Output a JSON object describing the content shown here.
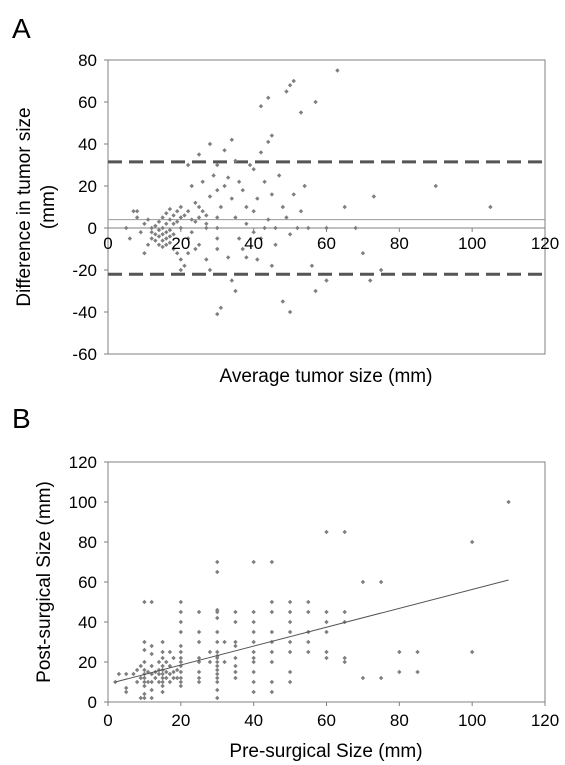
{
  "chart_data": [
    {
      "panel": "A",
      "type": "scatter",
      "title": "",
      "xlabel": "Average tumor size (mm)",
      "ylabel": "Difference in tumor size\n(mm)",
      "xlim": [
        0,
        120
      ],
      "ylim": [
        -60,
        80
      ],
      "xticks": [
        0,
        20,
        40,
        60,
        80,
        100,
        120
      ],
      "yticks": [
        -60,
        -40,
        -20,
        0,
        20,
        40,
        60,
        80
      ],
      "grid": false,
      "legend": "none",
      "point_color": "#7f7f7f",
      "reference_lines": [
        {
          "style": "dashed",
          "y": 31.5,
          "color": "#555555"
        },
        {
          "style": "solid",
          "y": 4,
          "color": "#999999"
        },
        {
          "style": "dashed",
          "y": -22,
          "color": "#555555"
        }
      ],
      "points": [
        [
          5,
          0
        ],
        [
          6,
          -5
        ],
        [
          7,
          8
        ],
        [
          8,
          8
        ],
        [
          8,
          5
        ],
        [
          9,
          -2
        ],
        [
          10,
          -12
        ],
        [
          10,
          2
        ],
        [
          11,
          -8
        ],
        [
          11,
          4
        ],
        [
          12,
          -5
        ],
        [
          12,
          -2
        ],
        [
          12,
          0
        ],
        [
          13,
          1
        ],
        [
          13,
          -3
        ],
        [
          13,
          -6
        ],
        [
          14,
          3
        ],
        [
          14,
          -1
        ],
        [
          14,
          -4
        ],
        [
          14,
          -8
        ],
        [
          15,
          5
        ],
        [
          15,
          0
        ],
        [
          15,
          -3
        ],
        [
          15,
          -6
        ],
        [
          15,
          -9
        ],
        [
          16,
          7
        ],
        [
          16,
          2
        ],
        [
          16,
          -2
        ],
        [
          16,
          -5
        ],
        [
          16,
          -8
        ],
        [
          17,
          9
        ],
        [
          17,
          4
        ],
        [
          17,
          -1
        ],
        [
          17,
          -4
        ],
        [
          17,
          -7
        ],
        [
          18,
          6
        ],
        [
          18,
          2
        ],
        [
          18,
          -3
        ],
        [
          18,
          -10
        ],
        [
          19,
          8
        ],
        [
          19,
          3
        ],
        [
          19,
          -12
        ],
        [
          20,
          10
        ],
        [
          20,
          5
        ],
        [
          20,
          0
        ],
        [
          20,
          -15
        ],
        [
          20,
          -20
        ],
        [
          21,
          -18
        ],
        [
          21,
          6
        ],
        [
          22,
          -5
        ],
        [
          22,
          -12
        ],
        [
          22,
          30
        ],
        [
          22,
          8
        ],
        [
          23,
          4
        ],
        [
          23,
          -2
        ],
        [
          23,
          20
        ],
        [
          24,
          -10
        ],
        [
          24,
          12
        ],
        [
          24,
          3
        ],
        [
          25,
          35
        ],
        [
          25,
          10
        ],
        [
          25,
          -8
        ],
        [
          25,
          5
        ],
        [
          26,
          22
        ],
        [
          26,
          8
        ],
        [
          27,
          6
        ],
        [
          27,
          0
        ],
        [
          27,
          -15
        ],
        [
          27,
          2
        ],
        [
          28,
          40
        ],
        [
          28,
          15
        ],
        [
          28,
          -20
        ],
        [
          29,
          25
        ],
        [
          30,
          30
        ],
        [
          30,
          18
        ],
        [
          30,
          -5
        ],
        [
          30,
          -10
        ],
        [
          30,
          5
        ],
        [
          30,
          0
        ],
        [
          30,
          -41
        ],
        [
          31,
          -38
        ],
        [
          31,
          10
        ],
        [
          32,
          37
        ],
        [
          32,
          20
        ],
        [
          33,
          24
        ],
        [
          33,
          -14
        ],
        [
          34,
          42
        ],
        [
          34,
          14
        ],
        [
          34,
          -25
        ],
        [
          35,
          -30
        ],
        [
          35,
          32
        ],
        [
          35,
          5
        ],
        [
          36,
          22
        ],
        [
          36,
          -5
        ],
        [
          37,
          18
        ],
        [
          37,
          -10
        ],
        [
          38,
          10
        ],
        [
          38,
          2
        ],
        [
          38,
          -14
        ],
        [
          39,
          30
        ],
        [
          40,
          -2
        ],
        [
          40,
          28
        ],
        [
          40,
          8
        ],
        [
          41,
          -15
        ],
        [
          41,
          14
        ],
        [
          42,
          58
        ],
        [
          42,
          36
        ],
        [
          42,
          -5
        ],
        [
          43,
          22
        ],
        [
          43,
          0
        ],
        [
          44,
          62
        ],
        [
          44,
          41
        ],
        [
          44,
          4
        ],
        [
          45,
          44
        ],
        [
          45,
          16
        ],
        [
          45,
          -18
        ],
        [
          46,
          0
        ],
        [
          46,
          -8
        ],
        [
          47,
          25
        ],
        [
          48,
          10
        ],
        [
          48,
          -35
        ],
        [
          49,
          65
        ],
        [
          49,
          5
        ],
        [
          50,
          68
        ],
        [
          50,
          -3
        ],
        [
          50,
          -40
        ],
        [
          51,
          70
        ],
        [
          51,
          16
        ],
        [
          52,
          0
        ],
        [
          53,
          55
        ],
        [
          53,
          8
        ],
        [
          54,
          20
        ],
        [
          55,
          0
        ],
        [
          56,
          -18
        ],
        [
          57,
          60
        ],
        [
          57,
          -30
        ],
        [
          60,
          0
        ],
        [
          60,
          -25
        ],
        [
          63,
          75
        ],
        [
          65,
          10
        ],
        [
          68,
          0
        ],
        [
          70,
          -12
        ],
        [
          72,
          -25
        ],
        [
          73,
          15
        ],
        [
          75,
          -20
        ],
        [
          90,
          20
        ],
        [
          105,
          10
        ]
      ]
    },
    {
      "panel": "B",
      "type": "scatter",
      "title": "",
      "xlabel": "Pre-surgical Size (mm)",
      "ylabel": "Post-surgical Size (mm)",
      "xlim": [
        0,
        120
      ],
      "ylim": [
        0,
        120
      ],
      "xticks": [
        0,
        20,
        40,
        60,
        80,
        100,
        120
      ],
      "yticks": [
        0,
        20,
        40,
        60,
        80,
        100,
        120
      ],
      "grid": false,
      "legend": "none",
      "point_color": "#7f7f7f",
      "trendline": {
        "style": "solid",
        "color": "#555555",
        "from": [
          2,
          10
        ],
        "to": [
          110,
          61
        ]
      },
      "points": [
        [
          2,
          10
        ],
        [
          3,
          14
        ],
        [
          5,
          7
        ],
        [
          5,
          5
        ],
        [
          5,
          14
        ],
        [
          7,
          14
        ],
        [
          8,
          10
        ],
        [
          8,
          16
        ],
        [
          9,
          18
        ],
        [
          9,
          12
        ],
        [
          9,
          2
        ],
        [
          10,
          50
        ],
        [
          10,
          26
        ],
        [
          10,
          30
        ],
        [
          10,
          20
        ],
        [
          10,
          16
        ],
        [
          10,
          14
        ],
        [
          10,
          12
        ],
        [
          10,
          10
        ],
        [
          10,
          8
        ],
        [
          10,
          4
        ],
        [
          10,
          2
        ],
        [
          11,
          15
        ],
        [
          11,
          10
        ],
        [
          12,
          50
        ],
        [
          12,
          28
        ],
        [
          12,
          24
        ],
        [
          12,
          18
        ],
        [
          12,
          14
        ],
        [
          12,
          10
        ],
        [
          12,
          6
        ],
        [
          12,
          2
        ],
        [
          13,
          15
        ],
        [
          13,
          12
        ],
        [
          14,
          20
        ],
        [
          14,
          16
        ],
        [
          14,
          14
        ],
        [
          14,
          10
        ],
        [
          15,
          30
        ],
        [
          15,
          25
        ],
        [
          15,
          22
        ],
        [
          15,
          18
        ],
        [
          15,
          16
        ],
        [
          15,
          14
        ],
        [
          15,
          12
        ],
        [
          15,
          10
        ],
        [
          15,
          8
        ],
        [
          15,
          5
        ],
        [
          16,
          20
        ],
        [
          16,
          15
        ],
        [
          16,
          12
        ],
        [
          17,
          25
        ],
        [
          17,
          18
        ],
        [
          17,
          14
        ],
        [
          17,
          10
        ],
        [
          18,
          22
        ],
        [
          18,
          15
        ],
        [
          18,
          12
        ],
        [
          19,
          16
        ],
        [
          19,
          12
        ],
        [
          20,
          50
        ],
        [
          20,
          45
        ],
        [
          20,
          40
        ],
        [
          20,
          35
        ],
        [
          20,
          28
        ],
        [
          20,
          25
        ],
        [
          20,
          22
        ],
        [
          20,
          20
        ],
        [
          20,
          18
        ],
        [
          20,
          15
        ],
        [
          20,
          12
        ],
        [
          20,
          10
        ],
        [
          20,
          8
        ],
        [
          25,
          45
        ],
        [
          25,
          35
        ],
        [
          25,
          30
        ],
        [
          25,
          22
        ],
        [
          25,
          20
        ],
        [
          25,
          15
        ],
        [
          25,
          12
        ],
        [
          25,
          10
        ],
        [
          28,
          20
        ],
        [
          28,
          25
        ],
        [
          30,
          70
        ],
        [
          30,
          65
        ],
        [
          30,
          46
        ],
        [
          30,
          45
        ],
        [
          30,
          42
        ],
        [
          30,
          35
        ],
        [
          30,
          30
        ],
        [
          30,
          25
        ],
        [
          30,
          23
        ],
        [
          30,
          22
        ],
        [
          30,
          20
        ],
        [
          30,
          18
        ],
        [
          30,
          16
        ],
        [
          30,
          14
        ],
        [
          30,
          12
        ],
        [
          30,
          10
        ],
        [
          30,
          6
        ],
        [
          30,
          2
        ],
        [
          32,
          30
        ],
        [
          32,
          20
        ],
        [
          35,
          45
        ],
        [
          35,
          40
        ],
        [
          35,
          30
        ],
        [
          35,
          28
        ],
        [
          35,
          22
        ],
        [
          35,
          18
        ],
        [
          35,
          15
        ],
        [
          35,
          12
        ],
        [
          40,
          70
        ],
        [
          40,
          45
        ],
        [
          40,
          40
        ],
        [
          40,
          35
        ],
        [
          40,
          30
        ],
        [
          40,
          25
        ],
        [
          40,
          22
        ],
        [
          40,
          20
        ],
        [
          40,
          15
        ],
        [
          40,
          10
        ],
        [
          40,
          5
        ],
        [
          45,
          70
        ],
        [
          45,
          50
        ],
        [
          45,
          45
        ],
        [
          45,
          35
        ],
        [
          45,
          30
        ],
        [
          45,
          25
        ],
        [
          45,
          20
        ],
        [
          45,
          10
        ],
        [
          45,
          5
        ],
        [
          50,
          50
        ],
        [
          50,
          45
        ],
        [
          50,
          40
        ],
        [
          50,
          35
        ],
        [
          50,
          30
        ],
        [
          50,
          25
        ],
        [
          50,
          15
        ],
        [
          50,
          10
        ],
        [
          55,
          50
        ],
        [
          55,
          45
        ],
        [
          55,
          35
        ],
        [
          55,
          30
        ],
        [
          55,
          25
        ],
        [
          60,
          85
        ],
        [
          60,
          45
        ],
        [
          60,
          40
        ],
        [
          60,
          35
        ],
        [
          60,
          25
        ],
        [
          60,
          22
        ],
        [
          65,
          85
        ],
        [
          65,
          45
        ],
        [
          65,
          40
        ],
        [
          65,
          22
        ],
        [
          65,
          20
        ],
        [
          70,
          60
        ],
        [
          70,
          12
        ],
        [
          75,
          60
        ],
        [
          75,
          12
        ],
        [
          80,
          25
        ],
        [
          80,
          15
        ],
        [
          85,
          25
        ],
        [
          85,
          15
        ],
        [
          100,
          80
        ],
        [
          100,
          25
        ],
        [
          110,
          100
        ]
      ]
    }
  ]
}
